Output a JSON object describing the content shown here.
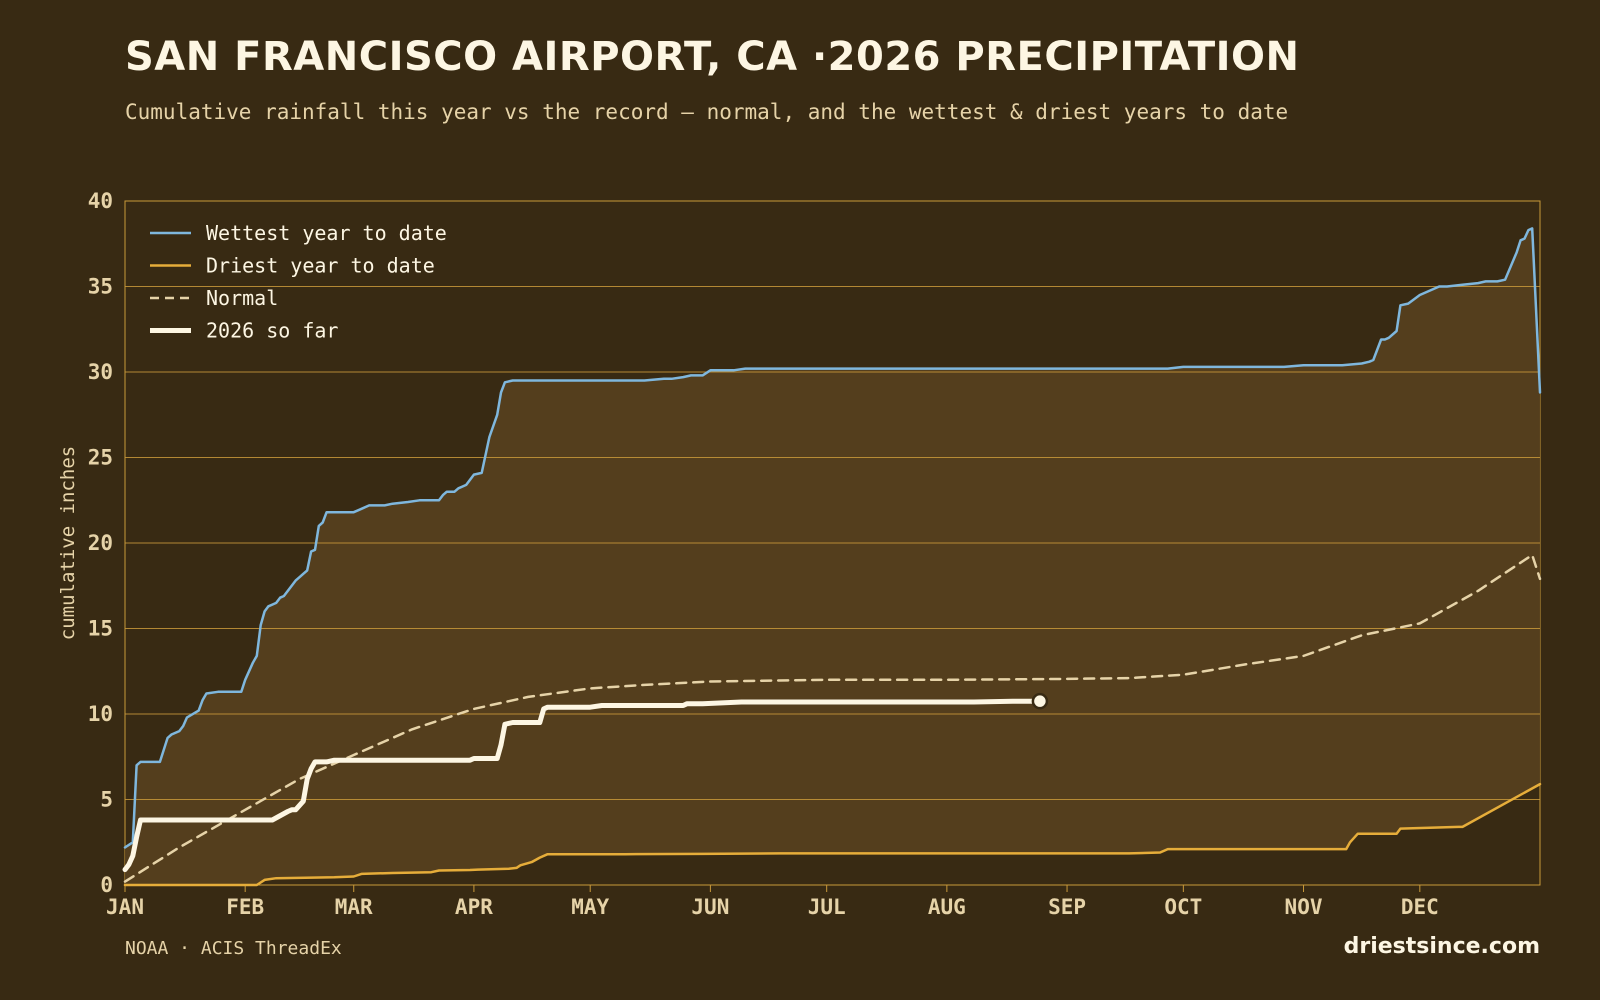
{
  "title": "SAN FRANCISCO AIRPORT, CA ·2026 PRECIPITATION",
  "subtitle": "Cumulative rainfall this year vs the record — normal, and the wettest & driest years to date",
  "source": "NOAA · ACIS ThreadEx",
  "brand": "driestsince.com",
  "colors": {
    "background": "#382a13",
    "band": "#553f1d",
    "grid": "#c9993a",
    "wettest": "#7fb7dd",
    "driest": "#e6ad3a",
    "normal": "#e6d3a8",
    "current": "#fdf6e3"
  },
  "chart_data": {
    "type": "line",
    "title": "SAN FRANCISCO AIRPORT, CA ·2026 PRECIPITATION",
    "subtitle": "Cumulative rainfall this year vs the record — normal, and the wettest & driest years to date",
    "xlabel": "",
    "ylabel": "cumulative inches",
    "x_ticks": [
      "JAN",
      "FEB",
      "MAR",
      "APR",
      "MAY",
      "JUN",
      "JUL",
      "AUG",
      "SEP",
      "OCT",
      "NOV",
      "DEC"
    ],
    "x_tick_days": [
      1,
      32,
      60,
      91,
      121,
      152,
      182,
      213,
      244,
      274,
      305,
      335
    ],
    "xlim": [
      1,
      366
    ],
    "y_ticks": [
      0,
      5,
      10,
      15,
      20,
      25,
      30,
      35,
      40
    ],
    "ylim": [
      0,
      40
    ],
    "grid": "horizontal",
    "legend_position": "top-left",
    "series": [
      {
        "name": "Wettest year to date",
        "style": "solid",
        "color": "#7fb7dd",
        "x": [
          1,
          3,
          4,
          5,
          10,
          12,
          13,
          15,
          16,
          17,
          20,
          21,
          22,
          25,
          28,
          30,
          31,
          32,
          34,
          35,
          36,
          37,
          38,
          39,
          40,
          41,
          42,
          45,
          46,
          47,
          48,
          49,
          50,
          51,
          52,
          53,
          55,
          56,
          57,
          58,
          60,
          62,
          64,
          65,
          68,
          70,
          74,
          77,
          82,
          83,
          84,
          86,
          87,
          88,
          89,
          91,
          93,
          95,
          97,
          98,
          99,
          101,
          102,
          105,
          110,
          115,
          121,
          125,
          130,
          135,
          140,
          142,
          145,
          147,
          150,
          152,
          155,
          158,
          161,
          168,
          175,
          182,
          213,
          244,
          258,
          270,
          274,
          285,
          300,
          305,
          315,
          320,
          322,
          323,
          325,
          326,
          327,
          329,
          330,
          332,
          335,
          340,
          342,
          346,
          350,
          352,
          355,
          357,
          360,
          361,
          362,
          363,
          364,
          366
        ],
        "values": [
          2.2,
          2.5,
          7.0,
          7.2,
          7.2,
          8.6,
          8.8,
          9.0,
          9.3,
          9.8,
          10.2,
          10.8,
          11.2,
          11.3,
          11.3,
          11.3,
          11.3,
          12.0,
          13.0,
          13.4,
          15.2,
          16.0,
          16.3,
          16.4,
          16.5,
          16.8,
          16.9,
          17.8,
          18.0,
          18.2,
          18.4,
          19.5,
          19.6,
          21.0,
          21.2,
          21.8,
          21.8,
          21.8,
          21.8,
          21.8,
          21.8,
          22.0,
          22.2,
          22.2,
          22.2,
          22.3,
          22.4,
          22.5,
          22.5,
          22.8,
          23.0,
          23.0,
          23.2,
          23.3,
          23.4,
          24.0,
          24.1,
          26.2,
          27.5,
          28.8,
          29.4,
          29.5,
          29.5,
          29.5,
          29.5,
          29.5,
          29.5,
          29.5,
          29.5,
          29.5,
          29.6,
          29.6,
          29.7,
          29.8,
          29.8,
          30.1,
          30.1,
          30.1,
          30.2,
          30.2,
          30.2,
          30.2,
          30.2,
          30.2,
          30.2,
          30.2,
          30.3,
          30.3,
          30.3,
          30.4,
          30.4,
          30.5,
          30.6,
          30.7,
          31.9,
          31.9,
          32.0,
          32.4,
          33.9,
          34.0,
          34.5,
          35.0,
          35.0,
          35.1,
          35.2,
          35.3,
          35.3,
          35.4,
          37.0,
          37.7,
          37.8,
          38.3,
          38.4,
          28.8
        ]
      },
      {
        "name": "Driest year to date",
        "style": "solid",
        "color": "#e6ad3a",
        "x": [
          1,
          35,
          37,
          40,
          55,
          60,
          62,
          70,
          80,
          82,
          90,
          92,
          100,
          102,
          103,
          106,
          108,
          110,
          115,
          121,
          130,
          150,
          170,
          200,
          230,
          260,
          268,
          270,
          274,
          300,
          316,
          317,
          319,
          320,
          325,
          329,
          330,
          345,
          346,
          366
        ],
        "values": [
          0,
          0,
          0.3,
          0.4,
          0.45,
          0.5,
          0.65,
          0.7,
          0.75,
          0.85,
          0.88,
          0.9,
          0.95,
          1.0,
          1.15,
          1.35,
          1.6,
          1.8,
          1.8,
          1.8,
          1.8,
          1.82,
          1.85,
          1.85,
          1.85,
          1.85,
          1.9,
          2.1,
          2.1,
          2.1,
          2.1,
          2.5,
          3.0,
          3.0,
          3.0,
          3.0,
          3.3,
          3.4,
          3.4,
          5.9
        ]
      },
      {
        "name": "Normal",
        "style": "dashed",
        "color": "#e6d3a8",
        "x": [
          1,
          15,
          32,
          46,
          60,
          75,
          91,
          105,
          121,
          135,
          152,
          182,
          213,
          244,
          260,
          274,
          290,
          305,
          320,
          335,
          350,
          364,
          366
        ],
        "values": [
          0.2,
          2.2,
          4.4,
          6.2,
          7.6,
          9.1,
          10.3,
          11.0,
          11.5,
          11.7,
          11.9,
          12.0,
          12.0,
          12.05,
          12.1,
          12.3,
          12.9,
          13.4,
          14.6,
          15.3,
          17.2,
          19.3,
          17.9
        ]
      },
      {
        "name": "2026 so far",
        "style": "solid-bold",
        "color": "#fdf6e3",
        "x": [
          1,
          2,
          3,
          4,
          5,
          15,
          32,
          38,
          39,
          43,
          44,
          45,
          47,
          48,
          49,
          50,
          53,
          55,
          60,
          70,
          80,
          88,
          90,
          91,
          95,
          96,
          97,
          98,
          99,
          101,
          105,
          107,
          108,
          109,
          110,
          115,
          121,
          124,
          125,
          130,
          140,
          145,
          146,
          150,
          160,
          170,
          182,
          200,
          210,
          220,
          230,
          237
        ],
        "values": [
          0.9,
          1.2,
          1.7,
          2.8,
          3.8,
          3.8,
          3.8,
          3.8,
          3.8,
          4.3,
          4.4,
          4.4,
          4.9,
          6.2,
          6.8,
          7.2,
          7.2,
          7.3,
          7.3,
          7.3,
          7.3,
          7.3,
          7.3,
          7.4,
          7.4,
          7.4,
          7.4,
          8.2,
          9.4,
          9.5,
          9.5,
          9.5,
          9.5,
          10.3,
          10.4,
          10.4,
          10.4,
          10.5,
          10.5,
          10.5,
          10.5,
          10.5,
          10.6,
          10.6,
          10.7,
          10.7,
          10.7,
          10.7,
          10.7,
          10.7,
          10.75,
          10.75
        ]
      }
    ]
  }
}
